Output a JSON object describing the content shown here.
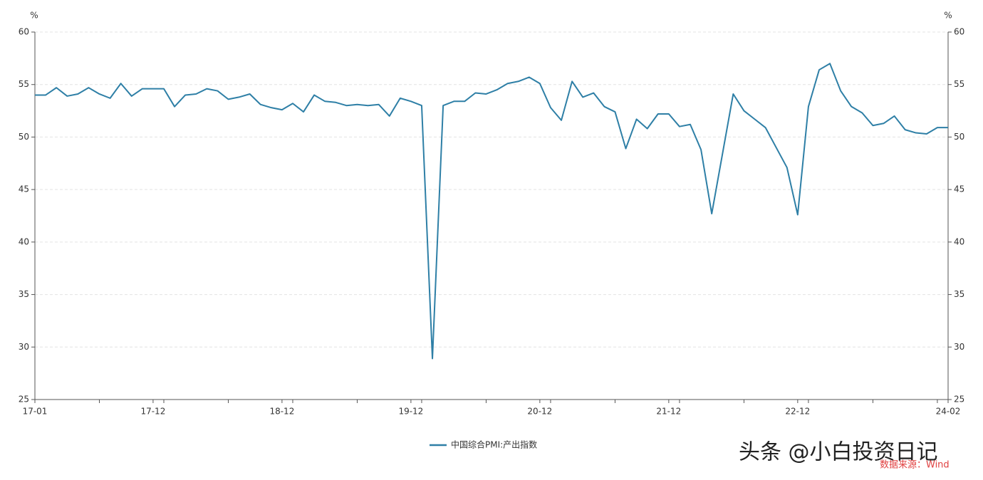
{
  "chart_data": {
    "type": "line",
    "y_label": "%",
    "y2_label": "%",
    "categories": [
      "17-01",
      null,
      null,
      null,
      null,
      null,
      null,
      null,
      null,
      null,
      null,
      "17-12",
      null,
      null,
      null,
      null,
      null,
      null,
      null,
      null,
      null,
      null,
      null,
      "18-12",
      null,
      null,
      null,
      null,
      null,
      null,
      null,
      null,
      null,
      null,
      null,
      "19-12",
      null,
      null,
      null,
      null,
      null,
      null,
      null,
      null,
      null,
      null,
      null,
      "20-12",
      null,
      null,
      null,
      null,
      null,
      null,
      null,
      null,
      null,
      null,
      null,
      "21-12",
      null,
      null,
      null,
      null,
      null,
      null,
      null,
      null,
      null,
      null,
      null,
      "22-12",
      null,
      null,
      null,
      null,
      null,
      null,
      null,
      null,
      null,
      null,
      null,
      null,
      null,
      "24-02"
    ],
    "series": [
      {
        "name": "中国综合PMI:产出指数",
        "color": "#2e7fa6",
        "values": [
          54.0,
          54.0,
          54.7,
          53.9,
          54.1,
          54.7,
          54.1,
          53.7,
          55.1,
          53.9,
          54.6,
          54.6,
          54.6,
          52.9,
          54.0,
          54.1,
          54.6,
          54.4,
          53.6,
          53.8,
          54.1,
          53.1,
          52.8,
          52.6,
          53.2,
          52.4,
          54.0,
          53.4,
          53.3,
          53.0,
          53.1,
          53.0,
          53.1,
          52.0,
          53.7,
          53.4,
          53.0,
          28.9,
          53.0,
          53.4,
          53.4,
          54.2,
          54.1,
          54.5,
          55.1,
          55.3,
          55.7,
          55.1,
          52.8,
          51.6,
          55.3,
          53.8,
          54.2,
          52.9,
          52.4,
          48.9,
          51.7,
          50.8,
          52.2,
          52.2,
          51.0,
          51.2,
          48.8,
          42.7,
          48.4,
          54.1,
          52.5,
          51.7,
          50.9,
          49.0,
          47.1,
          42.6,
          52.9,
          56.4,
          57.0,
          54.4,
          52.9,
          52.3,
          51.1,
          51.3,
          52.0,
          50.7,
          50.4,
          50.3,
          50.9,
          50.9
        ]
      }
    ],
    "ylim": [
      25,
      60
    ],
    "yticks": [
      25,
      30,
      35,
      40,
      45,
      50,
      55,
      60
    ],
    "y2lim": [
      25,
      60
    ],
    "y2ticks": [
      25,
      30,
      35,
      40,
      45,
      50,
      55,
      60
    ],
    "grid": true,
    "legend": "bottom",
    "annotations": [
      "头条 @小白投资日记",
      "数据来源：Wind"
    ]
  }
}
